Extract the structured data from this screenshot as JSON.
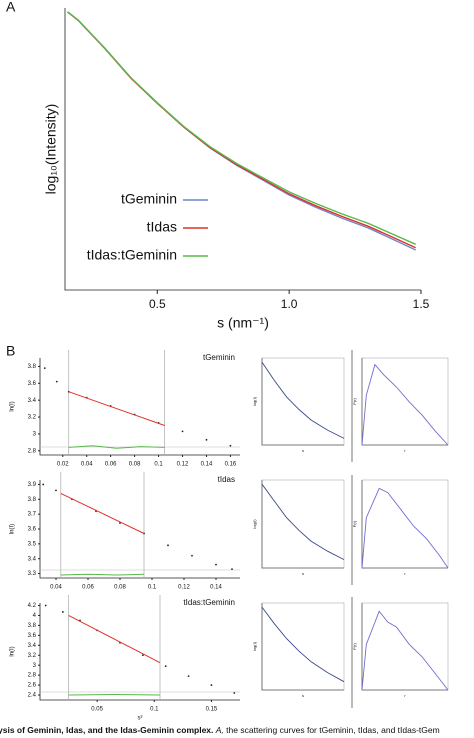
{
  "figure": {
    "panel_a_label": "A",
    "panel_b_label": "B",
    "caption": {
      "bold": "ysis of Geminin, Idas, and the Idas-Geminin complex.",
      "italic": "A,",
      "rest": "the scattering curves for tGeminin, tIdas, and tIdas-tGem"
    }
  },
  "chart_data": [
    {
      "type": "line",
      "y_label": "log₁₀(Intensity)",
      "x_label": "s (nm⁻¹)",
      "legend": "center-left",
      "x": [
        0.16,
        0.2,
        0.3,
        0.4,
        0.5,
        0.6,
        0.7,
        0.8,
        0.9,
        1.0,
        1.1,
        1.2,
        1.3,
        1.4,
        1.48
      ],
      "series": [
        {
          "name": "tGeminin",
          "color": "#6f86c9",
          "values": [
            98.6,
            95.7,
            85.8,
            75.2,
            66.3,
            57.8,
            50.4,
            44.3,
            39.0,
            33.7,
            29.4,
            25.5,
            22.0,
            17.7,
            14.2
          ]
        },
        {
          "name": "tIdas",
          "color": "#e0302c",
          "values": [
            98.6,
            95.6,
            85.7,
            75.1,
            66.2,
            57.8,
            50.5,
            44.5,
            39.3,
            34.1,
            29.9,
            26.1,
            22.6,
            18.4,
            15.0
          ]
        },
        {
          "name": "tIdas:tGeminin",
          "color": "#58b84a",
          "values": [
            98.6,
            95.7,
            85.8,
            75.3,
            66.4,
            58.0,
            50.8,
            44.9,
            39.8,
            34.8,
            30.7,
            27.0,
            23.6,
            19.5,
            16.2
          ]
        }
      ],
      "xlim": [
        0.15,
        1.5
      ],
      "ylim": [
        0,
        100
      ],
      "xticks": [
        0.5,
        {
          "value": 1,
          "label": "1.0"
        },
        1.5
      ]
    },
    {
      "type": "guinier",
      "title": "tGeminin",
      "y_label": "ln(I)",
      "series": [
        {
          "color": "#222222",
          "style": "points",
          "x": [
            0.005,
            0.015,
            0.025,
            0.04,
            0.06,
            0.08,
            0.1,
            0.12,
            0.14,
            0.16
          ],
          "values": [
            3.78,
            3.62,
            3.5,
            3.43,
            3.33,
            3.23,
            3.13,
            3.03,
            2.93,
            2.86
          ]
        },
        {
          "color": "#e0302c",
          "style": "line",
          "x": [
            0.025,
            0.105
          ],
          "values": [
            3.5,
            3.1
          ]
        },
        {
          "color": "#58b84a",
          "style": "line",
          "x": [
            0.025,
            0.045,
            0.065,
            0.085,
            0.105
          ],
          "values": [
            2.84,
            2.86,
            2.83,
            2.85,
            2.84
          ]
        }
      ],
      "xmarkers": [
        0.025,
        0.105
      ],
      "xlim": [
        0.001,
        0.168
      ],
      "ylim": [
        2.75,
        3.9
      ],
      "xticks": [
        0.02,
        0.04,
        0.06,
        0.08,
        0.1,
        0.12,
        0.14,
        0.16
      ],
      "yticks": [
        2.8,
        3,
        3.2,
        3.4,
        3.6,
        3.8
      ]
    },
    {
      "type": "line",
      "y_label": "log(I)",
      "x_label": "s",
      "color": "#3a4a8a",
      "x": [
        0,
        0.15,
        0.3,
        0.45,
        0.6,
        0.8,
        1
      ],
      "values": [
        1,
        0.78,
        0.58,
        0.43,
        0.3,
        0.18,
        0.08
      ],
      "xlim": [
        0,
        1
      ],
      "ylim": [
        0,
        1.05
      ]
    },
    {
      "type": "line",
      "y_label": "P(r)",
      "x_label": "r",
      "color": "#6f6fd0",
      "x": [
        0,
        0.05,
        0.15,
        0.25,
        0.4,
        0.55,
        0.7,
        0.85,
        1
      ],
      "values": [
        0,
        0.6,
        0.97,
        0.85,
        0.7,
        0.52,
        0.36,
        0.17,
        0
      ],
      "xlim": [
        0,
        1
      ],
      "ylim": [
        0,
        1.05
      ]
    },
    {
      "type": "guinier",
      "title": "tIdas",
      "y_label": "ln(I)",
      "series": [
        {
          "color": "#222222",
          "style": "points",
          "x": [
            0.032,
            0.04,
            0.05,
            0.065,
            0.08,
            0.095,
            0.11,
            0.125,
            0.14,
            0.15
          ],
          "values": [
            3.9,
            3.86,
            3.8,
            3.72,
            3.64,
            3.57,
            3.49,
            3.42,
            3.36,
            3.33
          ]
        },
        {
          "color": "#e0302c",
          "style": "line",
          "x": [
            0.043,
            0.095
          ],
          "values": [
            3.84,
            3.57
          ]
        },
        {
          "color": "#58b84a",
          "style": "line",
          "x": [
            0.043,
            0.06,
            0.078,
            0.095
          ],
          "values": [
            3.29,
            3.295,
            3.29,
            3.295
          ]
        }
      ],
      "xmarkers": [
        0.043,
        0.095
      ],
      "xlim": [
        0.03,
        0.155
      ],
      "ylim": [
        3.27,
        3.93
      ],
      "xticks": [
        0.04,
        0.06,
        0.08,
        0.1,
        0.12,
        0.14
      ],
      "yticks": [
        3.3,
        3.4,
        3.5,
        3.6,
        3.7,
        3.8,
        3.9
      ]
    },
    {
      "type": "line",
      "y_label": "log(I)",
      "x_label": "s",
      "color": "#3a4a8a",
      "x": [
        0,
        0.15,
        0.3,
        0.45,
        0.6,
        0.8,
        1
      ],
      "values": [
        1,
        0.8,
        0.6,
        0.45,
        0.32,
        0.2,
        0.1
      ],
      "xlim": [
        0,
        1
      ],
      "ylim": [
        0,
        1.05
      ]
    },
    {
      "type": "line",
      "y_label": "P(r)",
      "x_label": "r",
      "color": "#6f6fd0",
      "x": [
        0,
        0.05,
        0.2,
        0.3,
        0.45,
        0.6,
        0.75,
        0.9,
        1
      ],
      "values": [
        0,
        0.6,
        0.95,
        0.9,
        0.7,
        0.5,
        0.35,
        0.15,
        0
      ],
      "xlim": [
        0,
        1
      ],
      "ylim": [
        0,
        1.05
      ]
    },
    {
      "type": "guinier",
      "title": "tIdas:tGeminin",
      "y_label": "ln(I)",
      "x_label": "s²",
      "series": [
        {
          "color": "#222222",
          "style": "points",
          "x": [
            0.005,
            0.02,
            0.035,
            0.05,
            0.07,
            0.09,
            0.11,
            0.13,
            0.15,
            0.17
          ],
          "values": [
            4.2,
            4.07,
            3.9,
            3.7,
            3.45,
            3.2,
            2.98,
            2.78,
            2.6,
            2.44
          ]
        },
        {
          "color": "#e0302c",
          "style": "line",
          "x": [
            0.025,
            0.105
          ],
          "values": [
            4.0,
            3.05
          ]
        },
        {
          "color": "#58b84a",
          "style": "line",
          "x": [
            0.025,
            0.065,
            0.105
          ],
          "values": [
            2.4,
            2.41,
            2.4
          ]
        }
      ],
      "xmarkers": [
        0.025,
        0.105
      ],
      "xlim": [
        0,
        0.175
      ],
      "ylim": [
        2.3,
        4.25
      ],
      "xticks": [
        0.05,
        0.1,
        0.15
      ],
      "yticks": [
        2.4,
        2.6,
        2.8,
        3,
        3.2,
        3.4,
        3.6,
        3.8,
        4,
        4.2
      ]
    },
    {
      "type": "line",
      "y_label": "log(I)",
      "x_label": "s",
      "color": "#3a4a8a",
      "x": [
        0,
        0.15,
        0.3,
        0.45,
        0.6,
        0.8,
        1
      ],
      "values": [
        1,
        0.8,
        0.62,
        0.47,
        0.34,
        0.21,
        0.1
      ],
      "xlim": [
        0,
        1
      ],
      "ylim": [
        0,
        1.05
      ]
    },
    {
      "type": "line",
      "y_label": "P(r)",
      "x_label": "r",
      "color": "#6f6fd0",
      "x": [
        0,
        0.05,
        0.2,
        0.3,
        0.4,
        0.55,
        0.7,
        0.85,
        1
      ],
      "values": [
        0,
        0.55,
        0.95,
        0.82,
        0.76,
        0.55,
        0.4,
        0.2,
        0
      ],
      "xlim": [
        0,
        1
      ],
      "ylim": [
        0,
        1.05
      ]
    }
  ]
}
